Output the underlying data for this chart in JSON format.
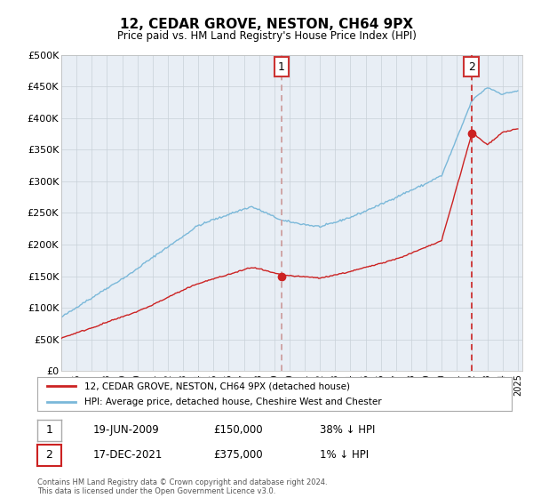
{
  "title": "12, CEDAR GROVE, NESTON, CH64 9PX",
  "subtitle": "Price paid vs. HM Land Registry's House Price Index (HPI)",
  "hpi_color": "#7ab8d9",
  "price_color": "#cc2222",
  "marker_color": "#cc2222",
  "vline1_color": "#cc9999",
  "vline2_color": "#cc2222",
  "chart_bg": "#e8eef5",
  "background_color": "#ffffff",
  "grid_color": "#c8d0d8",
  "ylim": [
    0,
    500000
  ],
  "yticks": [
    0,
    50000,
    100000,
    150000,
    200000,
    250000,
    300000,
    350000,
    400000,
    450000,
    500000
  ],
  "ytick_labels": [
    "£0",
    "£50K",
    "£100K",
    "£150K",
    "£200K",
    "£250K",
    "£300K",
    "£350K",
    "£400K",
    "£450K",
    "£500K"
  ],
  "sale1_date": "19-JUN-2009",
  "sale1_price": 150000,
  "sale1_label": "38% ↓ HPI",
  "sale1_x": 2009.47,
  "sale2_date": "17-DEC-2021",
  "sale2_price": 375000,
  "sale2_label": "1% ↓ HPI",
  "sale2_x": 2021.96,
  "legend_line1": "12, CEDAR GROVE, NESTON, CH64 9PX (detached house)",
  "legend_line2": "HPI: Average price, detached house, Cheshire West and Chester",
  "footer": "Contains HM Land Registry data © Crown copyright and database right 2024.\nThis data is licensed under the Open Government Licence v3.0."
}
